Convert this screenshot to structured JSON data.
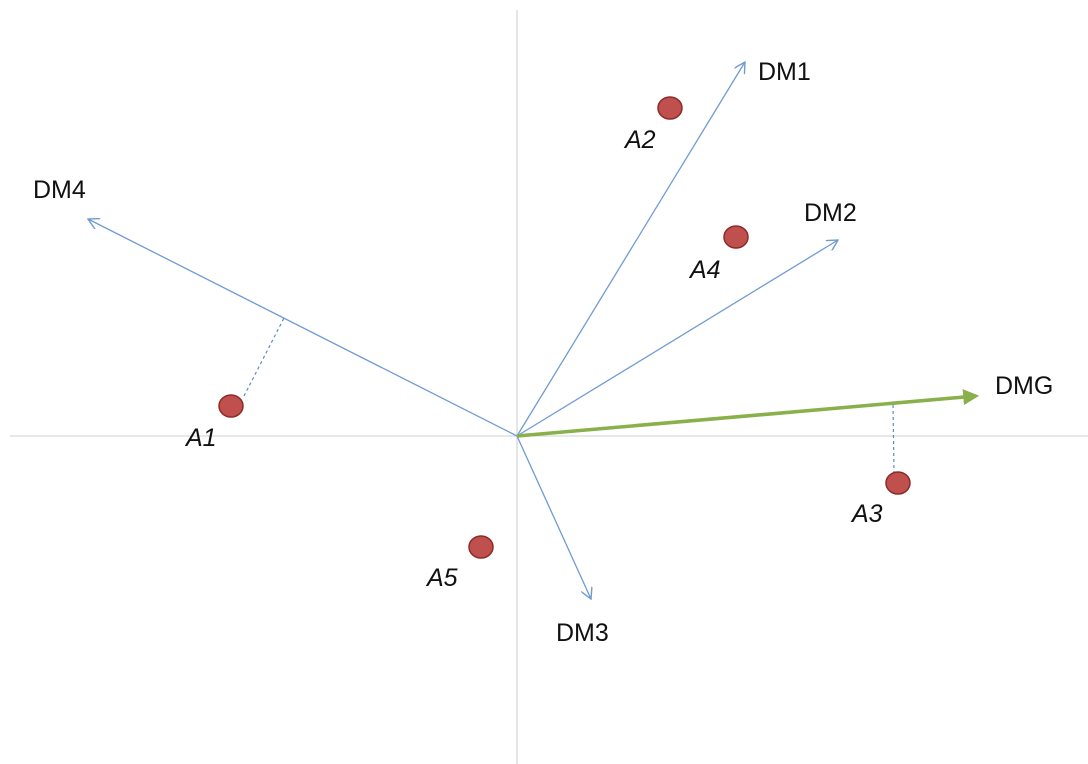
{
  "colors": {
    "axes": "#d9d9d9",
    "decision_maker_vector": "#6f9bd1",
    "group_vector": "#88b04b",
    "alternative_fill": "#c0504d",
    "alternative_stroke": "#8c2b28",
    "projection_line": "#5b8bc9",
    "text": "#111111"
  },
  "vectors": [
    {
      "id": "DM1",
      "label": "DM1"
    },
    {
      "id": "DM2",
      "label": "DM2"
    },
    {
      "id": "DM3",
      "label": "DM3"
    },
    {
      "id": "DM4",
      "label": "DM4"
    },
    {
      "id": "DMG",
      "label": "DMG"
    }
  ],
  "alternatives": [
    {
      "id": "A1",
      "label": "A1"
    },
    {
      "id": "A2",
      "label": "A2"
    },
    {
      "id": "A3",
      "label": "A3"
    },
    {
      "id": "A4",
      "label": "A4"
    },
    {
      "id": "A5",
      "label": "A5"
    }
  ],
  "projections": [
    {
      "alternative": "A1",
      "onto": "DM4"
    },
    {
      "alternative": "A3",
      "onto": "DMG"
    }
  ]
}
